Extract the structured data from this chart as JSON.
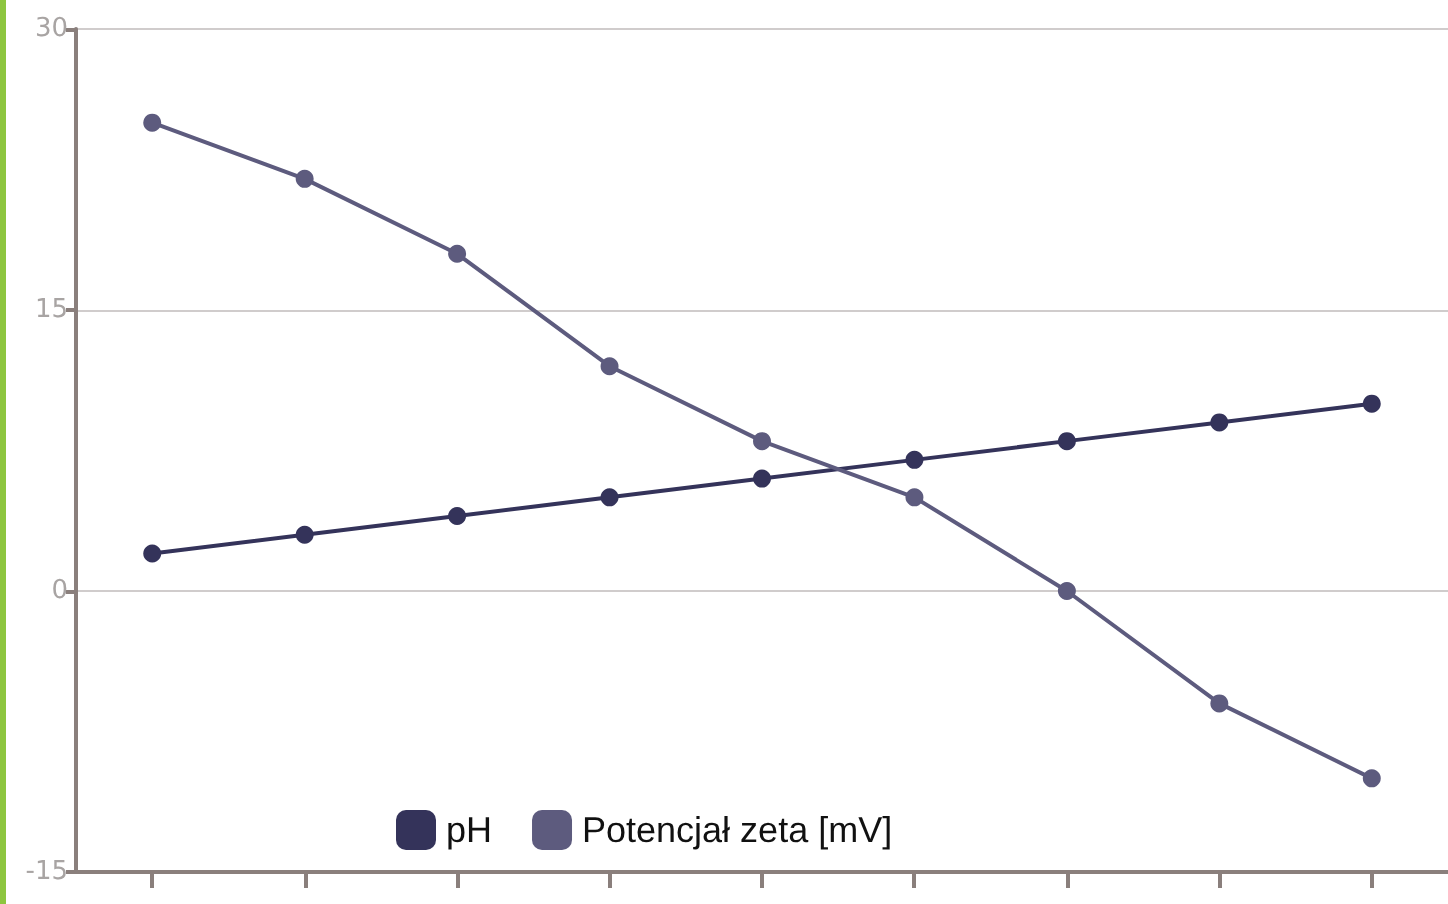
{
  "chart_data": {
    "type": "line",
    "categories": [
      null,
      null,
      null,
      null,
      null,
      null,
      null,
      null,
      null
    ],
    "series": [
      {
        "name": "pH",
        "color": "#34335a",
        "values": [
          2,
          3,
          4,
          5,
          6,
          7,
          8,
          9,
          10
        ]
      },
      {
        "name": "Potencjał zeta [mV]",
        "color": "#5d5b7e",
        "values": [
          25,
          22,
          18,
          12,
          8,
          5,
          0,
          -6,
          -10
        ]
      }
    ],
    "ylim": [
      -15,
      30
    ],
    "yticks": [
      -15,
      0,
      15,
      30
    ],
    "grid": "y",
    "legend": "bottom",
    "marker": "circle",
    "line_style": "solid"
  }
}
